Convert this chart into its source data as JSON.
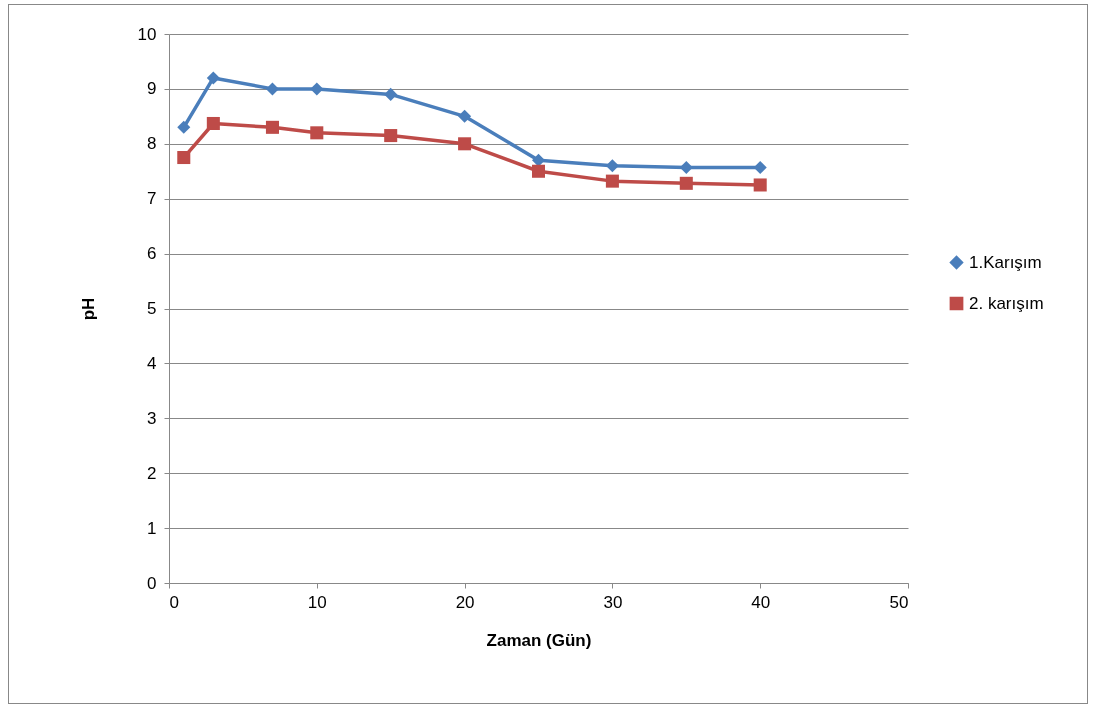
{
  "chart_data": {
    "type": "line",
    "xlabel": "Zaman (Gün)",
    "ylabel": "pH",
    "x": [
      1,
      3,
      7,
      10,
      15,
      20,
      25,
      30,
      35,
      40
    ],
    "series": [
      {
        "name": "1.Karışım",
        "color": "#4a7ebb",
        "marker": "diamond",
        "values": [
          8.3,
          9.2,
          9.0,
          9.0,
          8.9,
          8.5,
          7.7,
          7.6,
          7.57,
          7.57
        ]
      },
      {
        "name": "2. karışım",
        "color": "#be4b48",
        "marker": "square",
        "values": [
          7.75,
          8.37,
          8.3,
          8.2,
          8.15,
          8.0,
          7.5,
          7.32,
          7.28,
          7.25
        ]
      }
    ],
    "xlim": [
      0,
      50
    ],
    "xticks": [
      0,
      10,
      20,
      30,
      40,
      50
    ],
    "ylim": [
      0,
      10
    ],
    "yticks": [
      0,
      1,
      2,
      3,
      4,
      5,
      6,
      7,
      8,
      9,
      10
    ],
    "grid": "y",
    "legend": "right",
    "line_style": "solid"
  }
}
